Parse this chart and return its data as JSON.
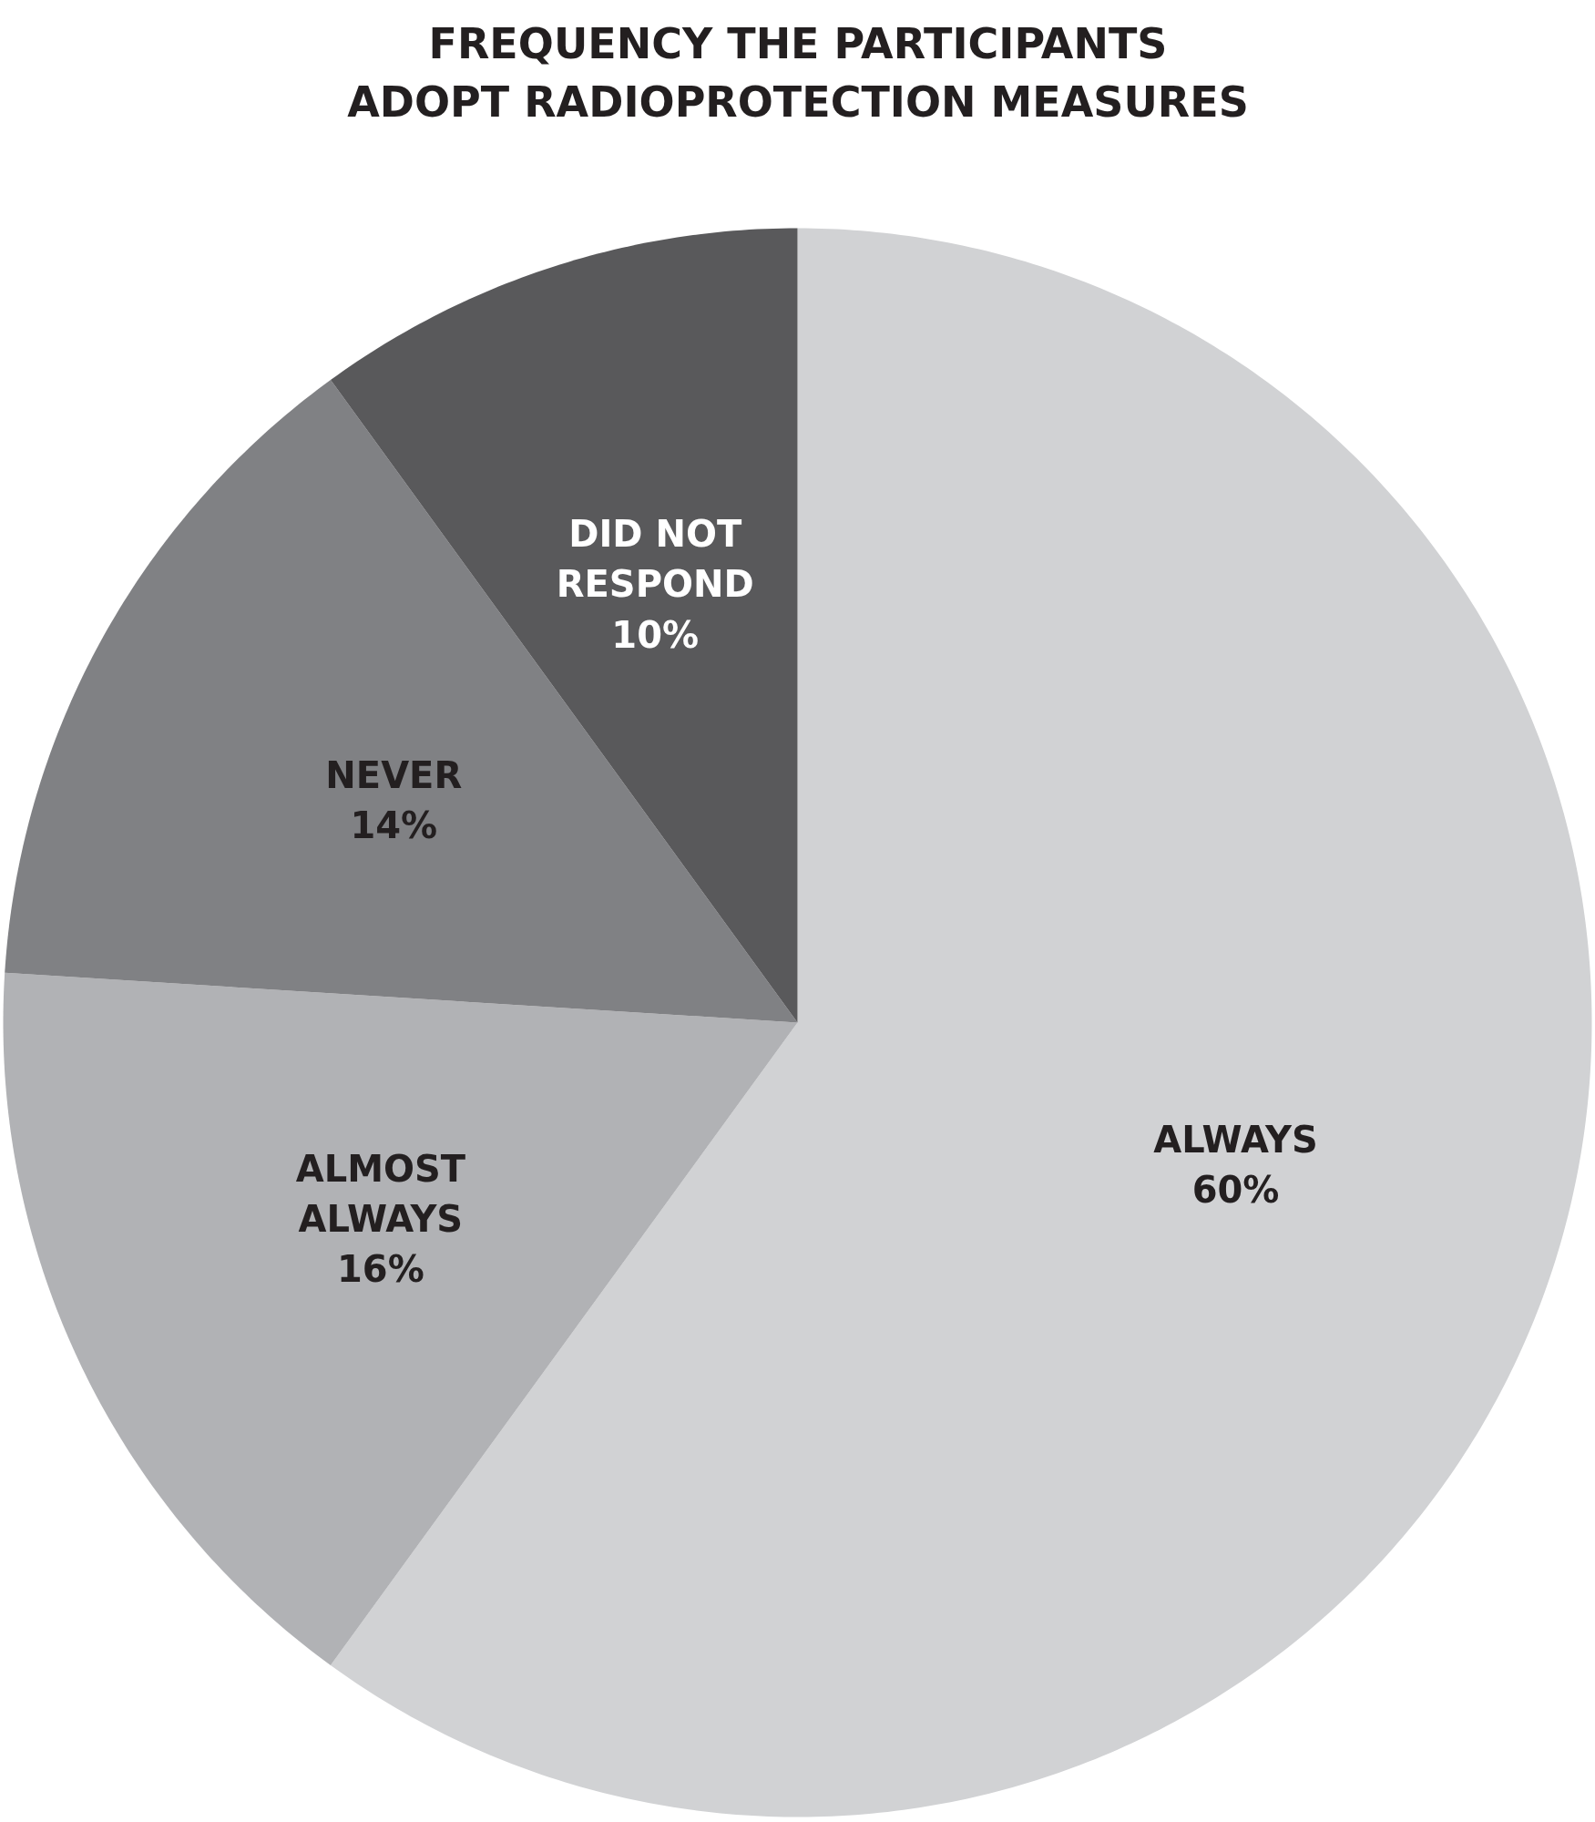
{
  "chart_data": {
    "type": "pie",
    "title": "FREQUENCY THE PARTICIPANTS ADOPT RADIOPROTECTION MEASURES",
    "categories": [
      "ALWAYS",
      "ALMOST ALWAYS",
      "NEVER",
      "DID NOT RESPOND"
    ],
    "values": [
      60,
      16,
      14,
      10
    ],
    "colors": [
      "#d1d2d4",
      "#b1b2b5",
      "#808184",
      "#59595b"
    ],
    "value_labels": [
      "60%",
      "16%",
      "14%",
      "10%"
    ],
    "legend": false
  }
}
